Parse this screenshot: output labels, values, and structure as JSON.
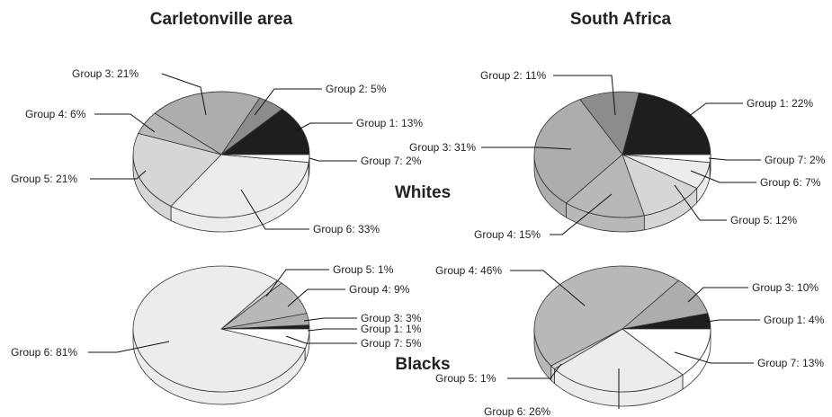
{
  "columns": [
    "Carletonville area",
    "South Africa"
  ],
  "rows": [
    "Whites",
    "Blacks"
  ],
  "colors": {
    "Group 1": "#1e1e1e",
    "Group 2": "#8c8c8c",
    "Group 3": "#adadad",
    "Group 4": "#b8b8b8",
    "Group 5": "#d6d6d6",
    "Group 6": "#ececec",
    "Group 7": "#ffffff"
  },
  "chart_data": [
    {
      "type": "pie",
      "column": "Carletonville area",
      "row": "Whites",
      "slices": [
        {
          "name": "Group 1",
          "value": 13,
          "label": "Group 1: 13%"
        },
        {
          "name": "Group 2",
          "value": 5,
          "label": "Group 2: 5%"
        },
        {
          "name": "Group 3",
          "value": 21,
          "label": "Group 3: 21%"
        },
        {
          "name": "Group 4",
          "value": 6,
          "label": "Group 4: 6%"
        },
        {
          "name": "Group 5",
          "value": 21,
          "label": "Group 5: 21%"
        },
        {
          "name": "Group 6",
          "value": 33,
          "label": "Group 6: 33%"
        },
        {
          "name": "Group 7",
          "value": 2,
          "label": "Group 7: 2%"
        }
      ]
    },
    {
      "type": "pie",
      "column": "South Africa",
      "row": "Whites",
      "slices": [
        {
          "name": "Group 1",
          "value": 22,
          "label": "Group 1: 22%"
        },
        {
          "name": "Group 2",
          "value": 11,
          "label": "Group 2: 11%"
        },
        {
          "name": "Group 3",
          "value": 31,
          "label": "Group 3: 31%"
        },
        {
          "name": "Group 4",
          "value": 15,
          "label": "Group 4: 15%"
        },
        {
          "name": "Group 5",
          "value": 12,
          "label": "Group 5: 12%"
        },
        {
          "name": "Group 6",
          "value": 7,
          "label": "Group 6: 7%"
        },
        {
          "name": "Group 7",
          "value": 2,
          "label": "Group 7: 2%"
        }
      ]
    },
    {
      "type": "pie",
      "column": "Carletonville area",
      "row": "Blacks",
      "slices": [
        {
          "name": "Group 1",
          "value": 1,
          "label": "Group 1: 1%"
        },
        {
          "name": "Group 3",
          "value": 3,
          "label": "Group 3: 3%"
        },
        {
          "name": "Group 4",
          "value": 9,
          "label": "Group 4: 9%"
        },
        {
          "name": "Group 5",
          "value": 1,
          "label": "Group 5: 1%"
        },
        {
          "name": "Group 6",
          "value": 81,
          "label": "Group 6: 81%"
        },
        {
          "name": "Group 7",
          "value": 5,
          "label": "Group 7: 5%"
        }
      ]
    },
    {
      "type": "pie",
      "column": "South Africa",
      "row": "Blacks",
      "slices": [
        {
          "name": "Group 1",
          "value": 4,
          "label": "Group 1: 4%"
        },
        {
          "name": "Group 3",
          "value": 10,
          "label": "Group 3: 10%"
        },
        {
          "name": "Group 4",
          "value": 46,
          "label": "Group 4: 46%"
        },
        {
          "name": "Group 5",
          "value": 1,
          "label": "Group 5: 1%"
        },
        {
          "name": "Group 6",
          "value": 26,
          "label": "Group 6: 26%"
        },
        {
          "name": "Group 7",
          "value": 13,
          "label": "Group 7: 13%"
        }
      ]
    }
  ]
}
